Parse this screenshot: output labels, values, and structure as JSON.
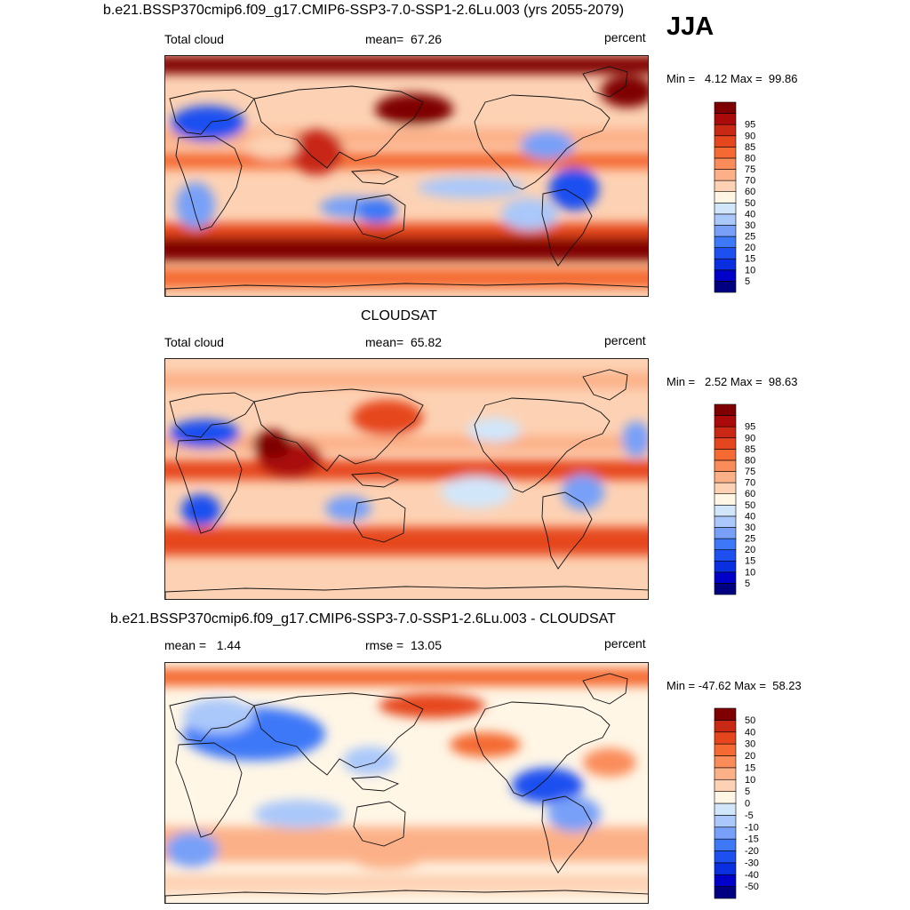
{
  "season": "JJA",
  "colors": {
    "seq": [
      "#000080",
      "#0000c8",
      "#0a2fe0",
      "#1e50f0",
      "#3c78f8",
      "#78a0f8",
      "#aac8fa",
      "#d2e6fa",
      "#fff6e6",
      "#fdd2b4",
      "#fcb087",
      "#fa8c5a",
      "#f46a32",
      "#e6461e",
      "#c82814",
      "#aa0a0a",
      "#7f0000"
    ],
    "diff": [
      "#000080",
      "#0000c8",
      "#0a2fe0",
      "#1e50f0",
      "#3c78f8",
      "#78a0f8",
      "#aac8fa",
      "#d2e6fa",
      "#fff6e6",
      "#fdd2b4",
      "#fcb087",
      "#fa8c5a",
      "#f46a32",
      "#e6461e",
      "#c82814",
      "#7f0000"
    ]
  },
  "panels": [
    {
      "title": "b.e21.BSSP370cmip6.f09_g17.CMIP6-SSP3-7.0-SSP1-2.6Lu.003 (yrs 2055-2079)",
      "left_label": "Total cloud",
      "center_label": "mean=  67.26",
      "units": "percent",
      "range_text": "Min =   4.12 Max =  99.86",
      "colorbar_labels": [
        "5",
        "10",
        "15",
        "20",
        "25",
        "30",
        "40",
        "50",
        "60",
        "70",
        "75",
        "80",
        "85",
        "90",
        "95"
      ]
    },
    {
      "title": "CLOUDSAT",
      "left_label": "Total cloud",
      "center_label": "mean=  65.82",
      "units": "percent",
      "range_text": "Min =   2.52 Max =  98.63",
      "colorbar_labels": [
        "5",
        "10",
        "15",
        "20",
        "25",
        "30",
        "40",
        "50",
        "60",
        "70",
        "75",
        "80",
        "85",
        "90",
        "95"
      ]
    },
    {
      "title": "b.e21.BSSP370cmip6.f09_g17.CMIP6-SSP3-7.0-SSP1-2.6Lu.003 - CLOUDSAT",
      "left_label": "mean =   1.44",
      "center_label": "rmse =  13.05",
      "units": "percent",
      "range_text": "Min = -47.62 Max =  58.23",
      "colorbar_labels": [
        "-50",
        "-40",
        "-30",
        "-20",
        "-15",
        "-10",
        "-5",
        "0",
        "5",
        "10",
        "15",
        "20",
        "30",
        "40",
        "50"
      ]
    }
  ],
  "chart_data": [
    {
      "type": "heatmap",
      "title": "b.e21.BSSP370cmip6.f09_g17.CMIP6-SSP3-7.0-SSP1-2.6Lu.003 (yrs 2055-2079)",
      "variable": "Total cloud",
      "units": "percent",
      "season": "JJA",
      "mean": 67.26,
      "min": 4.12,
      "max": 99.86,
      "contour_levels": [
        5,
        10,
        15,
        20,
        25,
        30,
        40,
        50,
        60,
        70,
        75,
        80,
        85,
        90,
        95
      ]
    },
    {
      "type": "heatmap",
      "title": "CLOUDSAT",
      "variable": "Total cloud",
      "units": "percent",
      "mean": 65.82,
      "min": 2.52,
      "max": 98.63,
      "contour_levels": [
        5,
        10,
        15,
        20,
        25,
        30,
        40,
        50,
        60,
        70,
        75,
        80,
        85,
        90,
        95
      ]
    },
    {
      "type": "heatmap",
      "title": "b.e21.BSSP370cmip6.f09_g17.CMIP6-SSP3-7.0-SSP1-2.6Lu.003 - CLOUDSAT",
      "units": "percent",
      "mean": 1.44,
      "rmse": 13.05,
      "min": -47.62,
      "max": 58.23,
      "contour_levels": [
        -50,
        -40,
        -30,
        -20,
        -15,
        -10,
        -5,
        0,
        5,
        10,
        15,
        20,
        30,
        40,
        50
      ]
    }
  ]
}
